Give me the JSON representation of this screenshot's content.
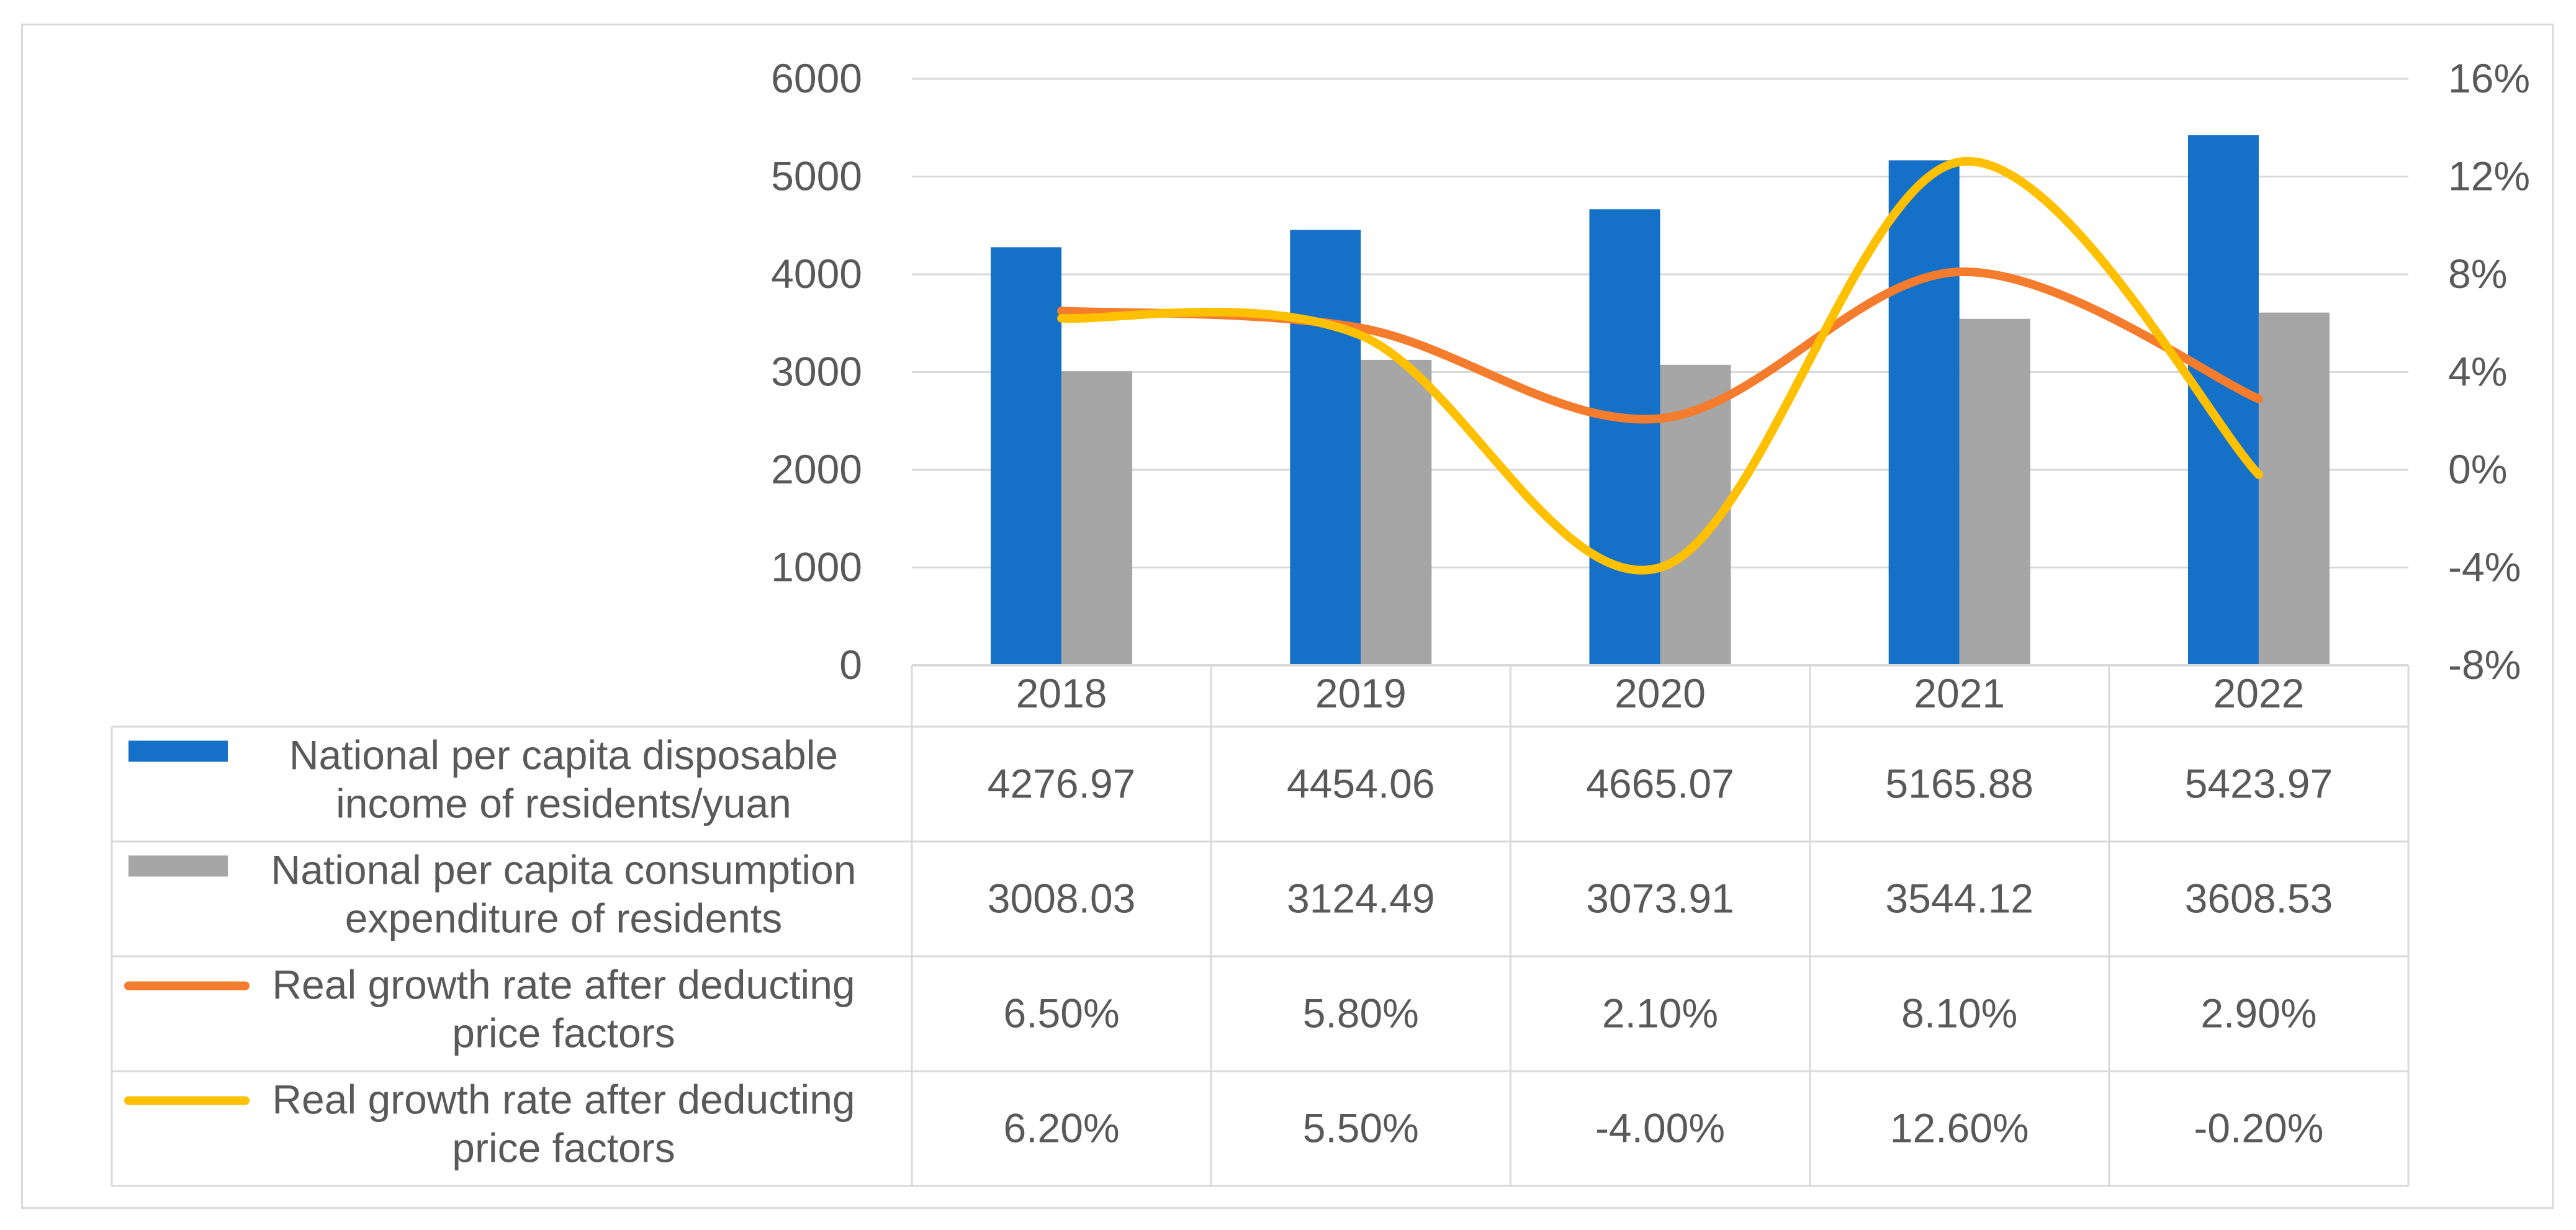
{
  "chart_data": {
    "type": "bar",
    "categories": [
      "2018",
      "2019",
      "2020",
      "2021",
      "2022"
    ],
    "series": [
      {
        "name": "National per capita disposable income of residents/yuan",
        "type": "bar",
        "axis": "left",
        "color": "#1570c8",
        "values": [
          4276.97,
          4454.06,
          4665.07,
          5165.88,
          5423.97
        ],
        "labels": [
          "4276.97",
          "4454.06",
          "4665.07",
          "5165.88",
          "5423.97"
        ]
      },
      {
        "name": "National per capita consumption expenditure of residents",
        "type": "bar",
        "axis": "left",
        "color": "#a6a6a6",
        "values": [
          3008.03,
          3124.49,
          3073.91,
          3544.12,
          3608.53
        ],
        "labels": [
          "3008.03",
          "3124.49",
          "3073.91",
          "3544.12",
          "3608.53"
        ]
      },
      {
        "name": "Real growth rate after deducting price factors",
        "type": "line",
        "axis": "right",
        "color": "#f47c2c",
        "values": [
          6.5,
          5.8,
          2.1,
          8.1,
          2.9
        ],
        "labels": [
          "6.50%",
          "5.80%",
          "2.10%",
          "8.10%",
          "2.90%"
        ]
      },
      {
        "name": "Real growth rate after deducting price factors",
        "type": "line",
        "axis": "right",
        "color": "#ffc000",
        "values": [
          6.2,
          5.5,
          -4.0,
          12.6,
          -0.2
        ],
        "labels": [
          "6.20%",
          "5.50%",
          "-4.00%",
          "12.60%",
          "-0.20%"
        ]
      }
    ],
    "left_axis": {
      "ylim": [
        0,
        6000
      ],
      "ticks": [
        "0",
        "1000",
        "2000",
        "3000",
        "4000",
        "5000",
        "6000"
      ]
    },
    "right_axis": {
      "ylim": [
        -8,
        16
      ],
      "ticks": [
        "-8%",
        "-4%",
        "0%",
        "4%",
        "8%",
        "12%",
        "16%"
      ]
    },
    "grid": true,
    "legend": "data-table-below",
    "legend_lines": [
      [
        "National per capita disposable",
        "income of residents/yuan"
      ],
      [
        "National per capita consumption",
        "expenditure of residents"
      ],
      [
        "Real growth rate after deducting",
        "price factors"
      ],
      [
        "Real growth rate after deducting",
        "price factors"
      ]
    ]
  }
}
